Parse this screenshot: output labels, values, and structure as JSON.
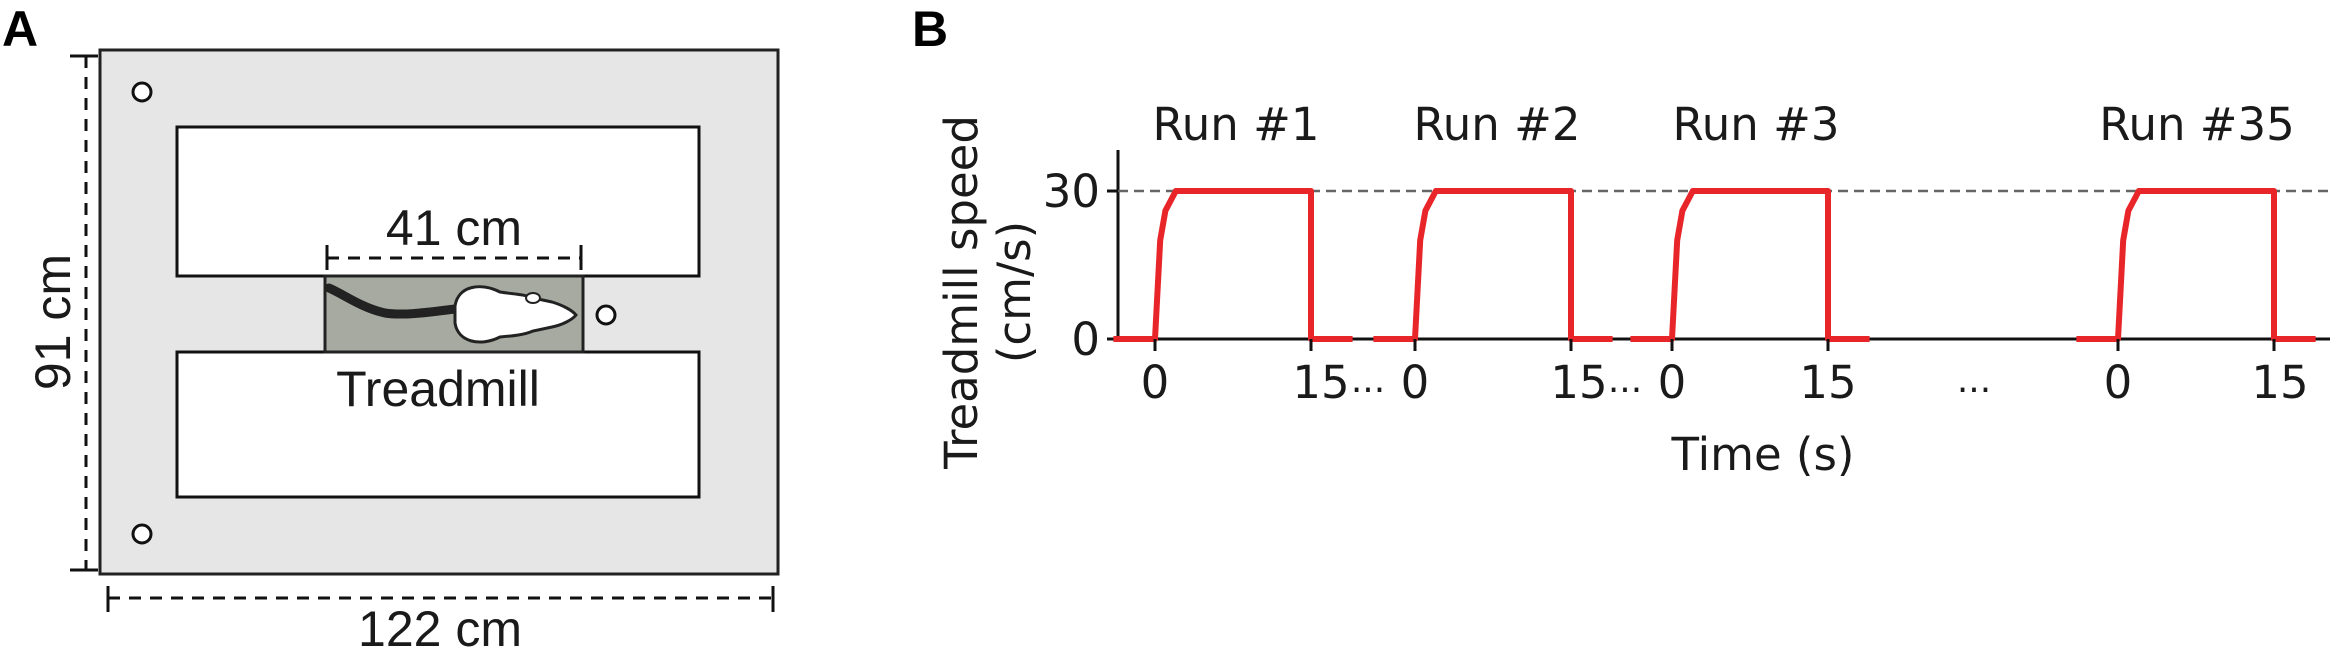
{
  "panel_a": {
    "letter": "A",
    "length_label": "41 cm",
    "height_label": "91 cm",
    "width_label": "122 cm",
    "treadmill_label": "Treadmill",
    "colors": {
      "arena": "#e6e6e6",
      "treadmill": "#a6aaa0",
      "outline": "#222222"
    }
  },
  "panel_b": {
    "letter": "B",
    "ylabel_line1": "Treadmill speed",
    "ylabel_line2": "(cm/s)",
    "xlabel": "Time (s)",
    "ellipsis": "...",
    "colors": {
      "trace": "#e8262a",
      "reference_line": "#666666"
    }
  },
  "chart_data": {
    "type": "line",
    "title": "",
    "xlabel": "Time (s)",
    "ylabel": "Treadmill speed (cm/s)",
    "y_ticks": [
      "0",
      "30"
    ],
    "ylim": [
      0,
      38
    ],
    "reference_line": 30,
    "series": [
      {
        "name": "Run #1",
        "x_ticks": [
          "0",
          "15"
        ],
        "x": [
          -4,
          0,
          0.5,
          1,
          2,
          15,
          15,
          19
        ],
        "y": [
          0,
          0,
          20,
          26,
          30,
          30,
          0,
          0
        ]
      },
      {
        "name": "Run #2",
        "x_ticks": [
          "0",
          "15"
        ],
        "x": [
          -4,
          0,
          0.5,
          1,
          2,
          15,
          15,
          19
        ],
        "y": [
          0,
          0,
          20,
          26,
          30,
          30,
          0,
          0
        ]
      },
      {
        "name": "Run #3",
        "x_ticks": [
          "0",
          "15"
        ],
        "x": [
          -4,
          0,
          0.5,
          1,
          2,
          15,
          15,
          19
        ],
        "y": [
          0,
          0,
          20,
          26,
          30,
          30,
          0,
          0
        ]
      },
      {
        "name": "Run #35",
        "x_ticks": [
          "0",
          "15"
        ],
        "x": [
          -4,
          0,
          0.5,
          1,
          2,
          15,
          15,
          19
        ],
        "y": [
          0,
          0,
          20,
          26,
          30,
          30,
          0,
          0
        ]
      }
    ]
  }
}
